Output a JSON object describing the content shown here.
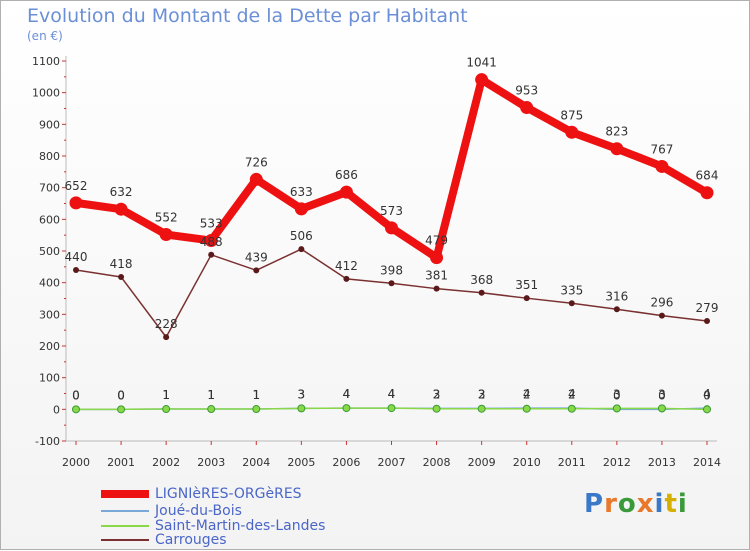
{
  "title": "Evolution du Montant de la Dette par Habitant",
  "unit": "(en €)",
  "brand": {
    "letters": [
      "P",
      "r",
      "o",
      "x",
      "i",
      "t",
      "i"
    ],
    "colors": [
      "#3a78c8",
      "#e8782a",
      "#3a9a3a",
      "#e8782a",
      "#3a78c8",
      "#d6b000",
      "#3a9a3a"
    ]
  },
  "chart_data": {
    "type": "line",
    "x": [
      2000,
      2001,
      2002,
      2003,
      2004,
      2005,
      2006,
      2007,
      2008,
      2009,
      2010,
      2011,
      2012,
      2013,
      2014
    ],
    "ylim": [
      -100,
      1100
    ],
    "yticks": [
      -100,
      0,
      100,
      200,
      300,
      400,
      500,
      600,
      700,
      800,
      900,
      1000,
      1100
    ],
    "grid": false,
    "legend_position": "bottom-left",
    "series": [
      {
        "name": "LIGNIèRES-ORGèRES",
        "color": "#ee1111",
        "values": [
          652,
          632,
          552,
          533,
          726,
          633,
          686,
          573,
          479,
          1041,
          953,
          875,
          823,
          767,
          684
        ]
      },
      {
        "name": "Joué-du-Bois",
        "color": "#7aa8d8",
        "values": [
          0,
          0,
          1,
          1,
          1,
          3,
          4,
          4,
          3,
          3,
          4,
          4,
          0,
          0,
          4
        ]
      },
      {
        "name": "Saint-Martin-des-Landes",
        "color": "#88d848",
        "values": [
          0,
          0,
          1,
          1,
          1,
          3,
          4,
          4,
          2,
          2,
          2,
          2,
          3,
          3,
          0
        ]
      },
      {
        "name": "Carrouges",
        "color": "#7a3030",
        "values": [
          440,
          418,
          228,
          488,
          439,
          506,
          412,
          398,
          381,
          368,
          351,
          335,
          316,
          296,
          279
        ]
      }
    ]
  }
}
